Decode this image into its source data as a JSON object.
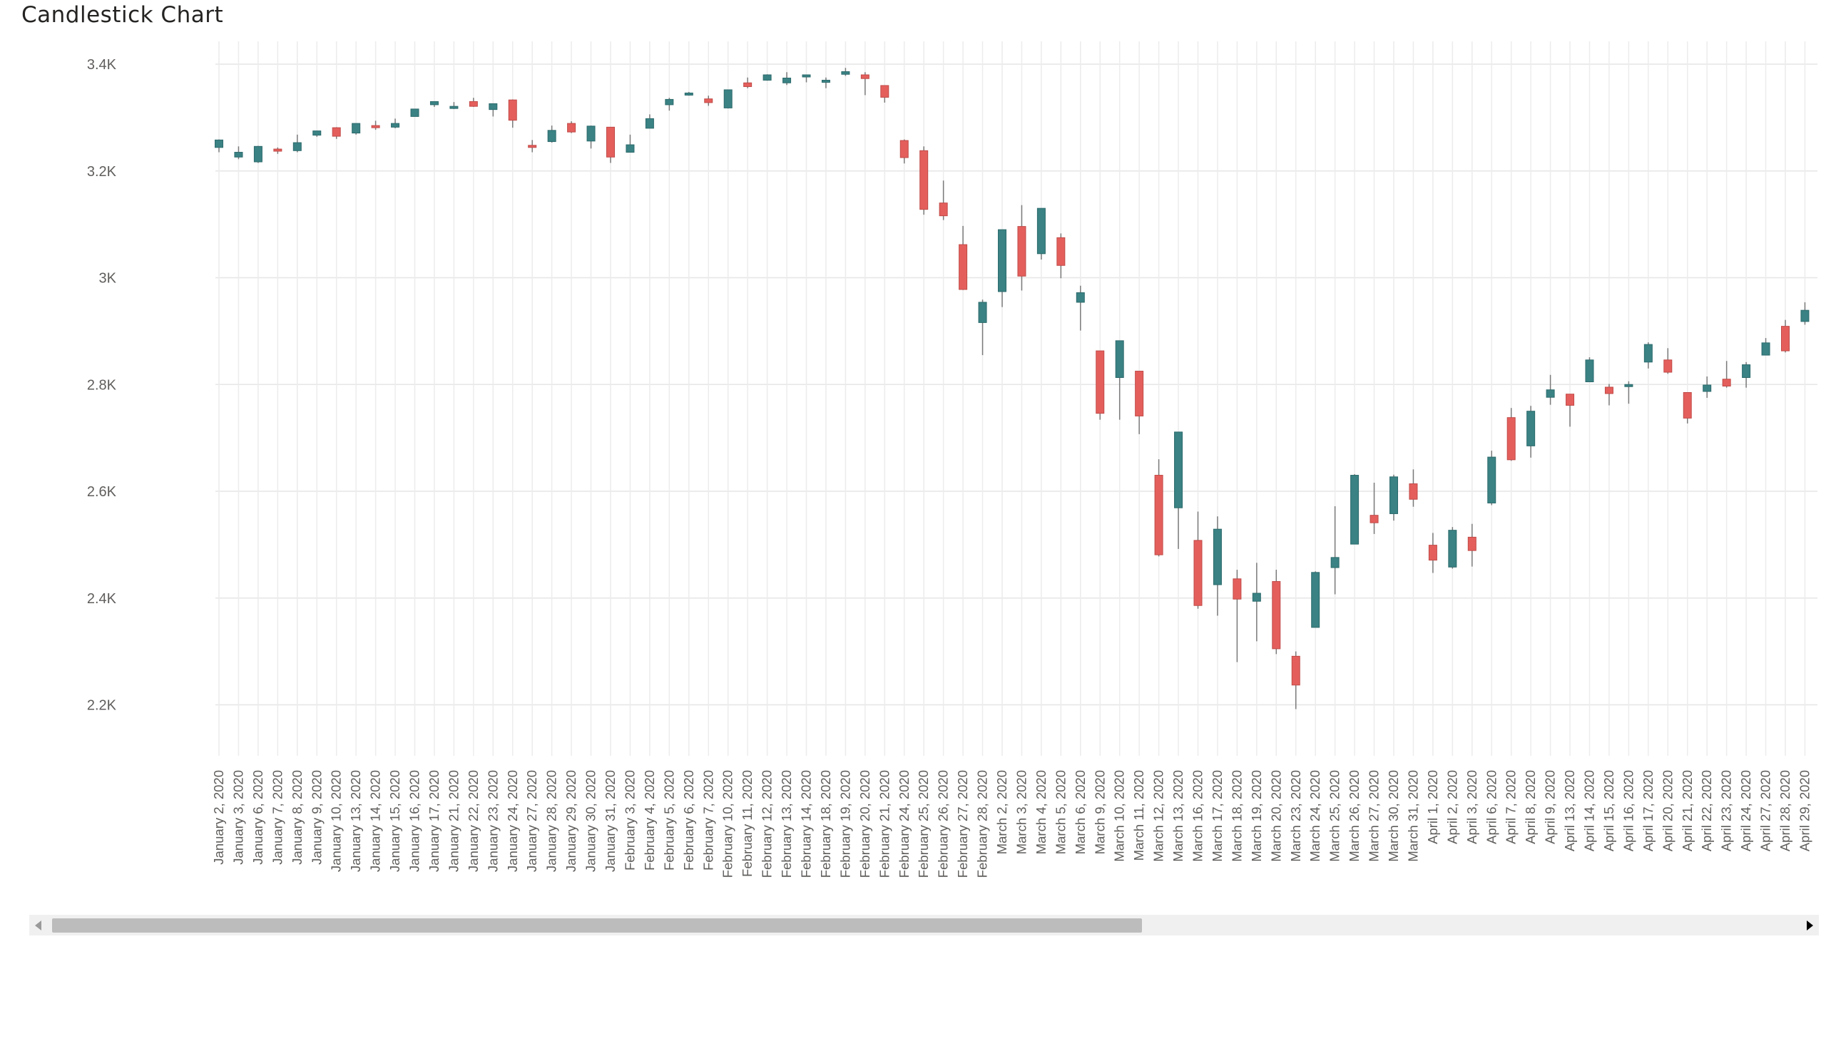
{
  "title": "Candlestick Chart",
  "colors": {
    "up": "#3a8284",
    "down": "#e45f5c",
    "wick": "#7a7a7a",
    "grid": "#e6e6e6",
    "text": "#605e5c"
  },
  "scrollbar": {
    "left_icon": "chevron-left-icon",
    "right_icon": "chevron-right-icon",
    "thumb_fraction": 0.61
  },
  "chart_data": {
    "type": "candlestick",
    "title": "Candlestick Chart",
    "xlabel": "",
    "ylabel": "",
    "ylim": [
      2120,
      3440
    ],
    "yticks": [
      2200,
      2400,
      2600,
      2800,
      3000,
      3200,
      3400
    ],
    "ytick_labels": [
      "2.2K",
      "2.4K",
      "2.6K",
      "2.8K",
      "3K",
      "3.2K",
      "3.4K"
    ],
    "grid": true,
    "candles": [
      {
        "date": "January 2, 2020",
        "open": 3244,
        "high": 3259,
        "low": 3235,
        "close": 3258
      },
      {
        "date": "January 3, 2020",
        "open": 3226,
        "high": 3246,
        "low": 3222,
        "close": 3235
      },
      {
        "date": "January 6, 2020",
        "open": 3217,
        "high": 3247,
        "low": 3215,
        "close": 3246
      },
      {
        "date": "January 7, 2020",
        "open": 3241,
        "high": 3244,
        "low": 3232,
        "close": 3237
      },
      {
        "date": "January 8, 2020",
        "open": 3238,
        "high": 3268,
        "low": 3235,
        "close": 3253
      },
      {
        "date": "January 9, 2020",
        "open": 3267,
        "high": 3275,
        "low": 3264,
        "close": 3275
      },
      {
        "date": "January 10, 2020",
        "open": 3281,
        "high": 3282,
        "low": 3260,
        "close": 3265
      },
      {
        "date": "January 13, 2020",
        "open": 3271,
        "high": 3289,
        "low": 3268,
        "close": 3289
      },
      {
        "date": "January 14, 2020",
        "open": 3285,
        "high": 3294,
        "low": 3277,
        "close": 3283
      },
      {
        "date": "January 15, 2020",
        "open": 3282,
        "high": 3298,
        "low": 3280,
        "close": 3289
      },
      {
        "date": "January 16, 2020",
        "open": 3302,
        "high": 3316,
        "low": 3302,
        "close": 3316
      },
      {
        "date": "January 17, 2020",
        "open": 3324,
        "high": 3330,
        "low": 3320,
        "close": 3330
      },
      {
        "date": "January 21, 2020",
        "open": 3321,
        "high": 3329,
        "low": 3316,
        "close": 3321
      },
      {
        "date": "January 22, 2020",
        "open": 3330,
        "high": 3337,
        "low": 3320,
        "close": 3321
      },
      {
        "date": "January 23, 2020",
        "open": 3315,
        "high": 3326,
        "low": 3302,
        "close": 3326
      },
      {
        "date": "January 24, 2020",
        "open": 3333,
        "high": 3334,
        "low": 3281,
        "close": 3295
      },
      {
        "date": "January 27, 2020",
        "open": 3248,
        "high": 3258,
        "low": 3235,
        "close": 3244
      },
      {
        "date": "January 28, 2020",
        "open": 3255,
        "high": 3285,
        "low": 3253,
        "close": 3276
      },
      {
        "date": "January 29, 2020",
        "open": 3289,
        "high": 3293,
        "low": 3271,
        "close": 3273
      },
      {
        "date": "January 30, 2020",
        "open": 3256,
        "high": 3285,
        "low": 3242,
        "close": 3284
      },
      {
        "date": "January 31, 2020",
        "open": 3282,
        "high": 3282,
        "low": 3215,
        "close": 3226
      },
      {
        "date": "February 3, 2020",
        "open": 3235,
        "high": 3268,
        "low": 3235,
        "close": 3249
      },
      {
        "date": "February 4, 2020",
        "open": 3280,
        "high": 3306,
        "low": 3280,
        "close": 3298
      },
      {
        "date": "February 5, 2020",
        "open": 3324,
        "high": 3337,
        "low": 3313,
        "close": 3334
      },
      {
        "date": "February 6, 2020",
        "open": 3344,
        "high": 3348,
        "low": 3341,
        "close": 3346
      },
      {
        "date": "February 7, 2020",
        "open": 3335,
        "high": 3341,
        "low": 3322,
        "close": 3328
      },
      {
        "date": "February 10, 2020",
        "open": 3318,
        "high": 3352,
        "low": 3317,
        "close": 3352
      },
      {
        "date": "February 11, 2020",
        "open": 3365,
        "high": 3375,
        "low": 3355,
        "close": 3358
      },
      {
        "date": "February 12, 2020",
        "open": 3370,
        "high": 3381,
        "low": 3369,
        "close": 3380
      },
      {
        "date": "February 13, 2020",
        "open": 3365,
        "high": 3385,
        "low": 3361,
        "close": 3374
      },
      {
        "date": "February 14, 2020",
        "open": 3378,
        "high": 3380,
        "low": 3366,
        "close": 3380
      },
      {
        "date": "February 18, 2020",
        "open": 3370,
        "high": 3375,
        "low": 3355,
        "close": 3370
      },
      {
        "date": "February 19, 2020",
        "open": 3381,
        "high": 3393,
        "low": 3378,
        "close": 3386
      },
      {
        "date": "February 20, 2020",
        "open": 3380,
        "high": 3385,
        "low": 3342,
        "close": 3373
      },
      {
        "date": "February 21, 2020",
        "open": 3360,
        "high": 3360,
        "low": 3328,
        "close": 3338
      },
      {
        "date": "February 24, 2020",
        "open": 3257,
        "high": 3259,
        "low": 3214,
        "close": 3225
      },
      {
        "date": "February 25, 2020",
        "open": 3238,
        "high": 3246,
        "low": 3118,
        "close": 3128
      },
      {
        "date": "February 26, 2020",
        "open": 3140,
        "high": 3182,
        "low": 3108,
        "close": 3116
      },
      {
        "date": "February 27, 2020",
        "open": 3062,
        "high": 3097,
        "low": 2977,
        "close": 2978
      },
      {
        "date": "February 28, 2020",
        "open": 2916,
        "high": 2959,
        "low": 2855,
        "close": 2954
      },
      {
        "date": "March 2, 2020",
        "open": 2974,
        "high": 3090,
        "low": 2945,
        "close": 3090
      },
      {
        "date": "March 3, 2020",
        "open": 3096,
        "high": 3136,
        "low": 2976,
        "close": 3003
      },
      {
        "date": "March 4, 2020",
        "open": 3045,
        "high": 3130,
        "low": 3034,
        "close": 3130
      },
      {
        "date": "March 5, 2020",
        "open": 3075,
        "high": 3083,
        "low": 2999,
        "close": 3023
      },
      {
        "date": "March 6, 2020",
        "open": 2954,
        "high": 2985,
        "low": 2901,
        "close": 2972
      },
      {
        "date": "March 9, 2020",
        "open": 2863,
        "high": 2863,
        "low": 2734,
        "close": 2746
      },
      {
        "date": "March 10, 2020",
        "open": 2813,
        "high": 2882,
        "low": 2734,
        "close": 2882
      },
      {
        "date": "March 11, 2020",
        "open": 2825,
        "high": 2825,
        "low": 2707,
        "close": 2741
      },
      {
        "date": "March 12, 2020",
        "open": 2630,
        "high": 2660,
        "low": 2478,
        "close": 2481
      },
      {
        "date": "March 13, 2020",
        "open": 2569,
        "high": 2711,
        "low": 2492,
        "close": 2711
      },
      {
        "date": "March 16, 2020",
        "open": 2508,
        "high": 2562,
        "low": 2380,
        "close": 2386
      },
      {
        "date": "March 17, 2020",
        "open": 2425,
        "high": 2553,
        "low": 2367,
        "close": 2529
      },
      {
        "date": "March 18, 2020",
        "open": 2436,
        "high": 2453,
        "low": 2280,
        "close": 2398
      },
      {
        "date": "March 19, 2020",
        "open": 2394,
        "high": 2466,
        "low": 2319,
        "close": 2409
      },
      {
        "date": "March 20, 2020",
        "open": 2431,
        "high": 2453,
        "low": 2295,
        "close": 2305
      },
      {
        "date": "March 23, 2020",
        "open": 2291,
        "high": 2300,
        "low": 2192,
        "close": 2237
      },
      {
        "date": "March 24, 2020",
        "open": 2345,
        "high": 2450,
        "low": 2345,
        "close": 2448
      },
      {
        "date": "March 25, 2020",
        "open": 2457,
        "high": 2572,
        "low": 2407,
        "close": 2476
      },
      {
        "date": "March 26, 2020",
        "open": 2501,
        "high": 2632,
        "low": 2501,
        "close": 2630
      },
      {
        "date": "March 27, 2020",
        "open": 2555,
        "high": 2616,
        "low": 2520,
        "close": 2541
      },
      {
        "date": "March 30, 2020",
        "open": 2558,
        "high": 2631,
        "low": 2545,
        "close": 2627
      },
      {
        "date": "March 31, 2020",
        "open": 2614,
        "high": 2641,
        "low": 2571,
        "close": 2585
      },
      {
        "date": "April 1, 2020",
        "open": 2499,
        "high": 2522,
        "low": 2447,
        "close": 2471
      },
      {
        "date": "April 2, 2020",
        "open": 2458,
        "high": 2533,
        "low": 2455,
        "close": 2527
      },
      {
        "date": "April 3, 2020",
        "open": 2514,
        "high": 2539,
        "low": 2459,
        "close": 2489
      },
      {
        "date": "April 6, 2020",
        "open": 2578,
        "high": 2676,
        "low": 2574,
        "close": 2664
      },
      {
        "date": "April 7, 2020",
        "open": 2738,
        "high": 2756,
        "low": 2657,
        "close": 2659
      },
      {
        "date": "April 8, 2020",
        "open": 2685,
        "high": 2760,
        "low": 2663,
        "close": 2750
      },
      {
        "date": "April 9, 2020",
        "open": 2776,
        "high": 2818,
        "low": 2762,
        "close": 2790
      },
      {
        "date": "April 13, 2020",
        "open": 2782,
        "high": 2782,
        "low": 2721,
        "close": 2761
      },
      {
        "date": "April 14, 2020",
        "open": 2805,
        "high": 2851,
        "low": 2805,
        "close": 2846
      },
      {
        "date": "April 15, 2020",
        "open": 2795,
        "high": 2801,
        "low": 2761,
        "close": 2783
      },
      {
        "date": "April 16, 2020",
        "open": 2799,
        "high": 2806,
        "low": 2764,
        "close": 2800
      },
      {
        "date": "April 17, 2020",
        "open": 2842,
        "high": 2879,
        "low": 2830,
        "close": 2875
      },
      {
        "date": "April 20, 2020",
        "open": 2846,
        "high": 2868,
        "low": 2820,
        "close": 2823
      },
      {
        "date": "April 21, 2020",
        "open": 2785,
        "high": 2785,
        "low": 2727,
        "close": 2737
      },
      {
        "date": "April 22, 2020",
        "open": 2787,
        "high": 2815,
        "low": 2775,
        "close": 2799
      },
      {
        "date": "April 23, 2020",
        "open": 2810,
        "high": 2844,
        "low": 2794,
        "close": 2797
      },
      {
        "date": "April 24, 2020",
        "open": 2813,
        "high": 2842,
        "low": 2794,
        "close": 2837
      },
      {
        "date": "April 27, 2020",
        "open": 2855,
        "high": 2887,
        "low": 2855,
        "close": 2878
      },
      {
        "date": "April 28, 2020",
        "open": 2909,
        "high": 2921,
        "low": 2860,
        "close": 2863
      },
      {
        "date": "April 29, 2020",
        "open": 2918,
        "high": 2954,
        "low": 2912,
        "close": 2939
      }
    ]
  }
}
